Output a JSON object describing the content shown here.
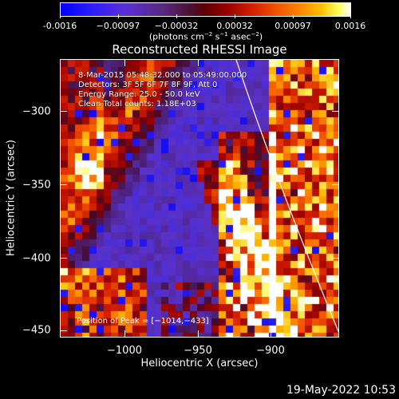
{
  "colorbar": {
    "tick_labels": [
      "-0.0016",
      "−0.00097",
      "−0.00032",
      "0.00032",
      "0.00097",
      "0.0016"
    ],
    "units_prefix": "(photons cm",
    "units_exp1": "−2",
    "units_mid": " s",
    "units_exp2": "−1",
    "units_mid2": " asec",
    "units_exp3": "−2",
    "units_suffix": ")"
  },
  "title": "Reconstructed RHESSI Image",
  "info": {
    "time_range": "8-Mar-2015 05:48:32.000 to 05:49:00.000",
    "detectors": "Detectors: 3F 5F 6F 7F 8F 9F, Att 0",
    "energy": "Energy Range: 25.0 - 50.0 keV",
    "method": "Clean    Total counts: 1.18E+03",
    "peak": "Position of Peak = [−1014,−433]"
  },
  "chart_data": {
    "type": "heatmap",
    "title": "Reconstructed RHESSI Image",
    "xlabel": "Heliocentric X (arcsec)",
    "ylabel": "Heliocentric Y (arcsec)",
    "xlim": [
      -1045,
      -865
    ],
    "ylim": [
      -455,
      -275
    ],
    "xticks": [
      -1000,
      -950,
      -900
    ],
    "yticks": [
      -300,
      -350,
      -400,
      -450
    ],
    "xtick_labels": [
      "−1000",
      "−950",
      "−900"
    ],
    "ytick_labels": [
      "−300",
      "−350",
      "−400",
      "−450"
    ],
    "colorbar_range": [
      -0.0016,
      0.0016
    ],
    "peak_position": [
      -1014,
      -433
    ],
    "colormap": [
      "#0000ff",
      "#5a2fd8",
      "#4a1030",
      "#a00000",
      "#f05000",
      "#ffc000",
      "#ffffff"
    ]
  },
  "footer": {
    "timestamp": "19-May-2022 10:53"
  }
}
